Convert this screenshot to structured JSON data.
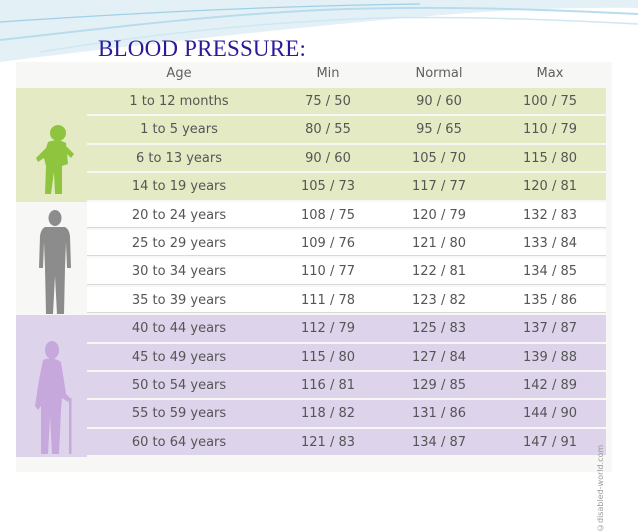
{
  "title": "BLOOD PRESSURE:",
  "columns": [
    "Age",
    "Min",
    "Normal",
    "Max"
  ],
  "groups": [
    {
      "name": "child",
      "rows": [
        [
          "1 to 12 months",
          "75 / 50",
          "90 / 60",
          "100 / 75"
        ],
        [
          "1 to 5 years",
          "80 / 55",
          "95 / 65",
          "110 / 79"
        ],
        [
          "6 to 13 years",
          "90 / 60",
          "105 / 70",
          "115 / 80"
        ],
        [
          "14 to 19 years",
          "105 / 73",
          "117 / 77",
          "120 / 81"
        ]
      ]
    },
    {
      "name": "adult",
      "rows": [
        [
          "20 to 24 years",
          "108 / 75",
          "120 / 79",
          "132 / 83"
        ],
        [
          "25 to 29 years",
          "109 / 76",
          "121 / 80",
          "133 / 84"
        ],
        [
          "30 to 34 years",
          "110 / 77",
          "122 / 81",
          "134 / 85"
        ],
        [
          "35 to 39 years",
          "111 / 78",
          "123 / 82",
          "135 / 86"
        ]
      ]
    },
    {
      "name": "senior",
      "rows": [
        [
          "40 to 44 years",
          "112 / 79",
          "125 / 83",
          "137 / 87"
        ],
        [
          "45 to 49 years",
          "115 / 80",
          "127 / 84",
          "139 / 88"
        ],
        [
          "50 to 54 years",
          "116 / 81",
          "129 / 85",
          "142 / 89"
        ],
        [
          "55 to 59 years",
          "118 / 82",
          "131 / 86",
          "144 / 90"
        ],
        [
          "60 to 64 years",
          "121 / 83",
          "134 / 87",
          "147 / 91"
        ]
      ]
    }
  ],
  "watermark": "©disabled-world.com",
  "colors": {
    "title": "#2a1a9a",
    "child_band": "#e4ebc4",
    "senior_band": "#ddd3ea",
    "child_figure": "#8fc43f",
    "adult_figure": "#8c8c8c",
    "senior_figure": "#c6a8dc"
  },
  "icons": [
    "child-silhouette-icon",
    "adult-silhouette-icon",
    "elderly-silhouette-icon"
  ]
}
